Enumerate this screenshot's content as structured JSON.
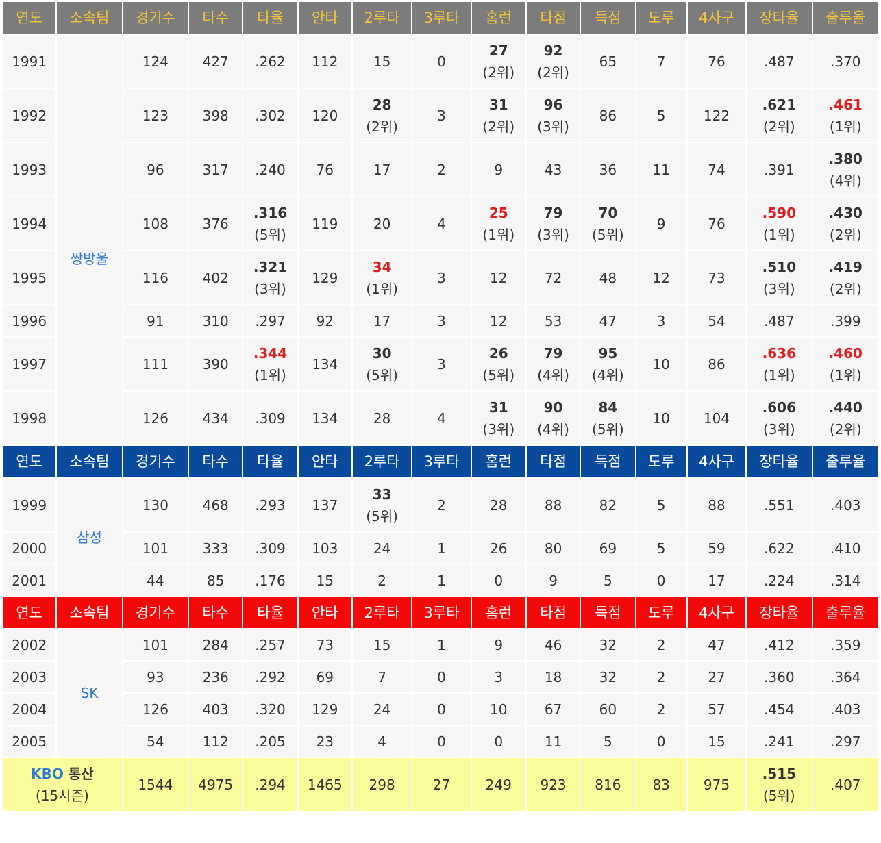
{
  "headers": [
    "연도",
    "소속팀",
    "경기수",
    "타수",
    "타율",
    "안타",
    "2루타",
    "3루타",
    "홈런",
    "타점",
    "득점",
    "도루",
    "4사구",
    "장타율",
    "출루율"
  ],
  "teams": {
    "team1": "쌍방울",
    "team2": "삼성",
    "team3": "SK"
  },
  "rows": [
    {
      "year": "1991",
      "g": "124",
      "ab": "427",
      "avg": ".262",
      "h": "112",
      "d": "15",
      "t": "0",
      "hr": "27",
      "hr_rank": "(2위)",
      "rbi": "92",
      "rbi_rank": "(2위)",
      "r": "65",
      "sb": "7",
      "bb": "76",
      "slg": ".487",
      "obp": ".370"
    },
    {
      "year": "1992",
      "g": "123",
      "ab": "398",
      "avg": ".302",
      "h": "120",
      "d": "28",
      "d_rank": "(2위)",
      "t": "3",
      "hr": "31",
      "hr_rank": "(2위)",
      "rbi": "96",
      "rbi_rank": "(3위)",
      "r": "86",
      "sb": "5",
      "bb": "122",
      "slg": ".621",
      "slg_rank": "(2위)",
      "obp": ".461",
      "obp_rank": "(1위)"
    },
    {
      "year": "1993",
      "g": "96",
      "ab": "317",
      "avg": ".240",
      "h": "76",
      "d": "17",
      "t": "2",
      "hr": "9",
      "rbi": "43",
      "r": "36",
      "sb": "11",
      "bb": "74",
      "slg": ".391",
      "obp": ".380",
      "obp_rank": "(4위)"
    },
    {
      "year": "1994",
      "g": "108",
      "ab": "376",
      "avg": ".316",
      "avg_rank": "(5위)",
      "h": "119",
      "d": "20",
      "t": "4",
      "hr": "25",
      "hr_rank": "(1위)",
      "rbi": "79",
      "rbi_rank": "(3위)",
      "r": "70",
      "r_rank": "(5위)",
      "sb": "9",
      "bb": "76",
      "slg": ".590",
      "slg_rank": "(1위)",
      "obp": ".430",
      "obp_rank": "(2위)"
    },
    {
      "year": "1995",
      "g": "116",
      "ab": "402",
      "avg": ".321",
      "avg_rank": "(3위)",
      "h": "129",
      "d": "34",
      "d_rank": "(1위)",
      "t": "3",
      "hr": "12",
      "rbi": "72",
      "r": "48",
      "sb": "12",
      "bb": "73",
      "slg": ".510",
      "slg_rank": "(3위)",
      "obp": ".419",
      "obp_rank": "(2위)"
    },
    {
      "year": "1996",
      "g": "91",
      "ab": "310",
      "avg": ".297",
      "h": "92",
      "d": "17",
      "t": "3",
      "hr": "12",
      "rbi": "53",
      "r": "47",
      "sb": "3",
      "bb": "54",
      "slg": ".487",
      "obp": ".399"
    },
    {
      "year": "1997",
      "g": "111",
      "ab": "390",
      "avg": ".344",
      "avg_rank": "(1위)",
      "h": "134",
      "d": "30",
      "d_rank": "(5위)",
      "t": "3",
      "hr": "26",
      "hr_rank": "(5위)",
      "rbi": "79",
      "rbi_rank": "(4위)",
      "r": "95",
      "r_rank": "(4위)",
      "sb": "10",
      "bb": "86",
      "slg": ".636",
      "slg_rank": "(1위)",
      "obp": ".460",
      "obp_rank": "(1위)"
    },
    {
      "year": "1998",
      "g": "126",
      "ab": "434",
      "avg": ".309",
      "h": "134",
      "d": "28",
      "t": "4",
      "hr": "31",
      "hr_rank": "(3위)",
      "rbi": "90",
      "rbi_rank": "(4위)",
      "r": "84",
      "r_rank": "(5위)",
      "sb": "10",
      "bb": "104",
      "slg": ".606",
      "slg_rank": "(3위)",
      "obp": ".440",
      "obp_rank": "(2위)"
    },
    {
      "year": "1999",
      "g": "130",
      "ab": "468",
      "avg": ".293",
      "h": "137",
      "d": "33",
      "d_rank": "(5위)",
      "t": "2",
      "hr": "28",
      "rbi": "88",
      "r": "82",
      "sb": "5",
      "bb": "88",
      "slg": ".551",
      "obp": ".403"
    },
    {
      "year": "2000",
      "g": "101",
      "ab": "333",
      "avg": ".309",
      "h": "103",
      "d": "24",
      "t": "1",
      "hr": "26",
      "rbi": "80",
      "r": "69",
      "sb": "5",
      "bb": "59",
      "slg": ".622",
      "obp": ".410"
    },
    {
      "year": "2001",
      "g": "44",
      "ab": "85",
      "avg": ".176",
      "h": "15",
      "d": "2",
      "t": "1",
      "hr": "0",
      "rbi": "9",
      "r": "5",
      "sb": "0",
      "bb": "17",
      "slg": ".224",
      "obp": ".314"
    },
    {
      "year": "2002",
      "g": "101",
      "ab": "284",
      "avg": ".257",
      "h": "73",
      "d": "15",
      "t": "1",
      "hr": "9",
      "rbi": "46",
      "r": "32",
      "sb": "2",
      "bb": "47",
      "slg": ".412",
      "obp": ".359"
    },
    {
      "year": "2003",
      "g": "93",
      "ab": "236",
      "avg": ".292",
      "h": "69",
      "d": "7",
      "t": "0",
      "hr": "3",
      "rbi": "18",
      "r": "32",
      "sb": "2",
      "bb": "27",
      "slg": ".360",
      "obp": ".364"
    },
    {
      "year": "2004",
      "g": "126",
      "ab": "403",
      "avg": ".320",
      "h": "129",
      "d": "24",
      "t": "0",
      "hr": "10",
      "rbi": "67",
      "r": "60",
      "sb": "2",
      "bb": "57",
      "slg": ".454",
      "obp": ".403"
    },
    {
      "year": "2005",
      "g": "54",
      "ab": "112",
      "avg": ".205",
      "h": "23",
      "d": "4",
      "t": "0",
      "hr": "0",
      "rbi": "11",
      "r": "5",
      "sb": "0",
      "bb": "15",
      "slg": ".241",
      "obp": ".297"
    }
  ],
  "total": {
    "label_kbo": "KBO",
    "label_rest": " 통산",
    "label_seasons": "(15시즌)",
    "g": "1544",
    "ab": "4975",
    "avg": ".294",
    "h": "1465",
    "d": "298",
    "t": "27",
    "hr": "249",
    "rbi": "923",
    "r": "816",
    "sb": "83",
    "bb": "975",
    "slg": ".515",
    "slg_rank": "(5위)",
    "obp": ".407"
  },
  "colors": {
    "header_gray": "#7c7c7c",
    "header_gold_text": "#f3c23b",
    "header_blue": "#0a4a9c",
    "header_red": "#f20a0a",
    "rank1_red": "#e21b1b",
    "team_blue": "#2f7bd1",
    "total_yellow": "#fcfb9b"
  }
}
